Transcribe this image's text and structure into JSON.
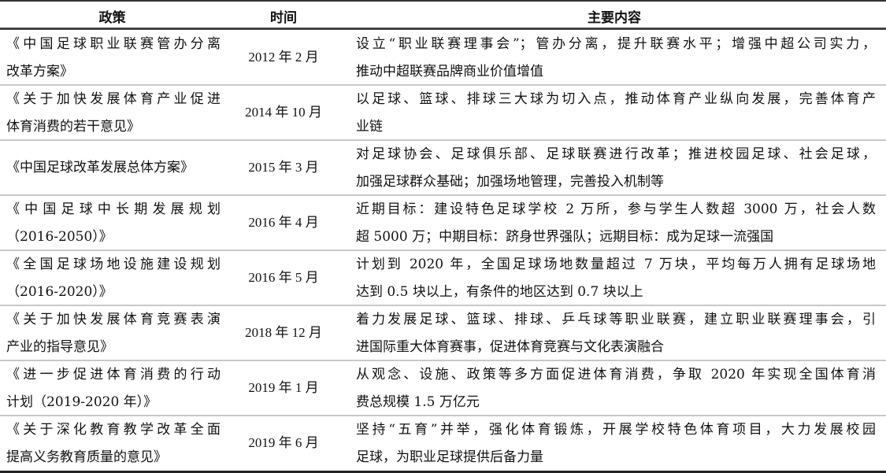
{
  "headers": {
    "policy": "政策",
    "time": "时间",
    "content": "主要内容"
  },
  "rows": [
    {
      "policy": [
        "《中国足球职业联赛管办分离",
        "改革方案》"
      ],
      "time": "2012 年 2 月",
      "content": [
        "设立“职业联赛理事会”；管办分离，提升联赛水平；增强中超公司实力，",
        "推动中超联赛品牌商业价值增值"
      ]
    },
    {
      "policy": [
        "《关于加快发展体育产业促进",
        "体育消费的若干意见》"
      ],
      "time": "2014 年 10 月",
      "content": [
        "以足球、篮球、排球三大球为切入点，推动体育产业纵向发展，完善体育产",
        "业链"
      ]
    },
    {
      "policy": [
        "《中国足球改革发展总体方案》"
      ],
      "time": "2015 年 3 月",
      "content": [
        "对足球协会、足球俱乐部、足球联赛进行改革；推进校园足球、社会足球，",
        "加强足球群众基础；加强场地管理，完善投入机制等"
      ]
    },
    {
      "policy": [
        "《中国足球中长期发展规划",
        "（2016-2050）》"
      ],
      "time": "2016 年 4 月",
      "content": [
        "近期目标：建设特色足球学校 2 万所，参与学生人数超 3000 万，社会人数",
        "超 5000 万；中期目标：跻身世界强队；远期目标：成为足球一流强国"
      ]
    },
    {
      "policy": [
        "《全国足球场地设施建设规划",
        "（2016-2020）》"
      ],
      "time": "2016 年 5 月",
      "content": [
        "计划到 2020 年，全国足球场地数量超过 7 万块，平均每万人拥有足球场地",
        "达到 0.5 块以上，有条件的地区达到 0.7 块以上"
      ]
    },
    {
      "policy": [
        "《关于加快发展体育竞赛表演",
        "产业的指导意见》"
      ],
      "time": "2018 年 12 月",
      "content": [
        "着力发展足球、篮球、排球、乒乓球等职业联赛，建立职业联赛理事会，引",
        "进国际重大体育赛事，促进体育竞赛与文化表演融合"
      ]
    },
    {
      "policy": [
        "《进一步促进体育消费的行动",
        "计划（2019-2020 年）》"
      ],
      "time": "2019 年 1 月",
      "content": [
        "从观念、设施、政策等多方面促进体育消费，争取 2020 年实现全国体育消",
        "费总规模 1.5 万亿元"
      ]
    },
    {
      "policy": [
        "《关于深化教育教学改革全面",
        "提高义务教育质量的意见》"
      ],
      "time": "2019 年 6 月",
      "content": [
        "坚持“五育”并举，强化体育锻炼，开展学校特色体育项目，大力发展校园",
        "足球，为职业足球提供后备力量"
      ]
    }
  ]
}
